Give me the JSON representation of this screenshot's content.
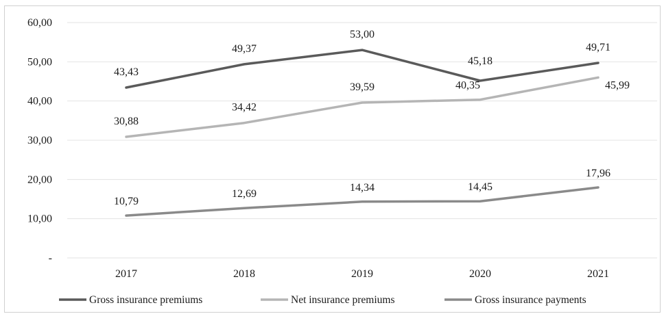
{
  "chart_data": {
    "type": "line",
    "categories": [
      "2017",
      "2018",
      "2019",
      "2020",
      "2021"
    ],
    "ylim": [
      0,
      60
    ],
    "yticks": [
      {
        "value": 0,
        "label": "-"
      },
      {
        "value": 10,
        "label": "10,00"
      },
      {
        "value": 20,
        "label": "20,00"
      },
      {
        "value": 30,
        "label": "30,00"
      },
      {
        "value": 40,
        "label": "40,00"
      },
      {
        "value": 50,
        "label": "50,00"
      },
      {
        "value": 60,
        "label": "60,00"
      }
    ],
    "grid": true,
    "legend": "bottom",
    "series": [
      {
        "name": "Gross insurance premiums",
        "values": [
          43.43,
          49.37,
          53.0,
          45.18,
          49.71
        ],
        "labels": [
          "43,43",
          "49,37",
          "53,00",
          "45,18",
          "49,71"
        ],
        "color": "#5a5a5a"
      },
      {
        "name": "Net insurance premiums",
        "values": [
          30.88,
          34.42,
          39.59,
          40.35,
          45.99
        ],
        "labels": [
          "30,88",
          "34,42",
          "39,59",
          "40,35",
          "45,99"
        ],
        "color": "#b5b5b5"
      },
      {
        "name": "Gross insurance payments",
        "values": [
          10.79,
          12.69,
          14.34,
          14.45,
          17.96
        ],
        "labels": [
          "10,79",
          "12,69",
          "14,34",
          "14,45",
          "17,96"
        ],
        "color": "#8a8a8a"
      }
    ]
  }
}
